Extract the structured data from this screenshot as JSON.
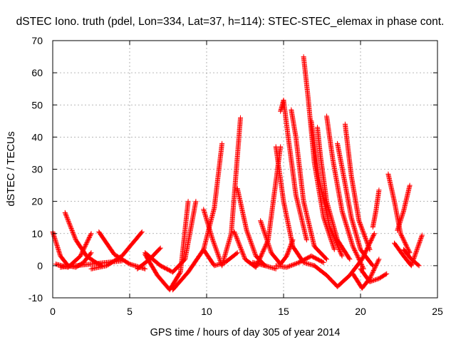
{
  "chart_data": {
    "type": "scatter",
    "title": "dSTEC Iono. truth (pdel, Lon=334, Lat=37, h=114): STEC-STEC_elemax in phase cont.",
    "xlabel": "GPS time / hours of day 305 of year 2014",
    "ylabel": "dSTEC  / TECUs",
    "xlim": [
      0,
      25
    ],
    "ylim": [
      -10,
      70
    ],
    "xticks": [
      "0",
      "5",
      "10",
      "15",
      "20",
      "25"
    ],
    "yticks": [
      "-10",
      "0",
      "10",
      "20",
      "30",
      "40",
      "50",
      "60",
      "70"
    ],
    "grid": true,
    "marker": "+",
    "color": "#ff0000",
    "series": [
      {
        "x": [
          0.0,
          0.5,
          1.0,
          1.5,
          2.0,
          2.5
        ],
        "y": [
          10.5,
          3,
          0,
          -0.5,
          1,
          4
        ]
      },
      {
        "x": [
          0.8,
          1.5,
          2.2,
          2.8,
          3.2
        ],
        "y": [
          16.5,
          8,
          3,
          1,
          0
        ]
      },
      {
        "x": [
          0.2,
          1.0,
          1.8,
          2.5
        ],
        "y": [
          0.5,
          -0.5,
          3,
          10
        ]
      },
      {
        "x": [
          0.5,
          1.5,
          2.5,
          3.5,
          4.5
        ],
        "y": [
          -0.5,
          0,
          0.5,
          1,
          1.5
        ]
      },
      {
        "x": [
          3.0,
          4.0,
          5.0,
          6.0
        ],
        "y": [
          10.5,
          3.5,
          0.5,
          -1
        ]
      },
      {
        "x": [
          2.5,
          3.5,
          4.5,
          5.8
        ],
        "y": [
          -1,
          0,
          3,
          10.5
        ]
      },
      {
        "x": [
          5.5,
          6.3,
          7.0
        ],
        "y": [
          -1,
          2,
          5.5
        ]
      },
      {
        "x": [
          6.0,
          7.0,
          7.8,
          8.6,
          9.3
        ],
        "y": [
          4,
          0,
          -2,
          2,
          20
        ]
      },
      {
        "x": [
          6.0,
          6.8,
          7.6,
          8.3,
          8.8
        ],
        "y": [
          3.5,
          -3,
          -7.5,
          -2,
          20
        ]
      },
      {
        "x": [
          7.8,
          8.8,
          9.8,
          10.5,
          11.0
        ],
        "y": [
          -7.5,
          -2,
          5,
          18,
          38
        ]
      },
      {
        "x": [
          9.8,
          10.4,
          11.0,
          11.6,
          12.2
        ],
        "y": [
          17.5,
          8,
          0,
          10,
          46
        ]
      },
      {
        "x": [
          9.8,
          10.5,
          11.2,
          12.0
        ],
        "y": [
          5,
          0,
          1,
          4
        ]
      },
      {
        "x": [
          12.0,
          12.6,
          13.2,
          13.8
        ],
        "y": [
          24,
          11,
          3,
          0
        ]
      },
      {
        "x": [
          11.8,
          12.5,
          13.2,
          14.0,
          14.8
        ],
        "y": [
          10.5,
          2,
          -0.5,
          8,
          37
        ]
      },
      {
        "x": [
          13.5,
          14.2,
          14.8,
          15.2,
          15.6
        ],
        "y": [
          14,
          4,
          0.5,
          3,
          8
        ]
      },
      {
        "x": [
          14.5,
          15.0,
          15.6,
          16.3,
          17.0
        ],
        "y": [
          37,
          20,
          6,
          1,
          0
        ]
      },
      {
        "x": [
          14.8,
          15.0,
          15.3,
          15.8,
          16.5
        ],
        "y": [
          48,
          51.5,
          40,
          22,
          8
        ]
      },
      {
        "x": [
          15.5,
          15.8,
          16.3,
          17.0,
          17.8
        ],
        "y": [
          48.5,
          40,
          20,
          6,
          2
        ]
      },
      {
        "x": [
          16.3,
          16.6,
          17.0,
          17.6,
          18.3
        ],
        "y": [
          65,
          52,
          32,
          15,
          5
        ]
      },
      {
        "x": [
          16.8,
          17.3,
          18.0,
          18.8
        ],
        "y": [
          45,
          27,
          12,
          3
        ]
      },
      {
        "x": [
          17.2,
          17.4,
          17.8,
          18.5,
          19.3
        ],
        "y": [
          43,
          34,
          20,
          8,
          2
        ]
      },
      {
        "x": [
          17.8,
          18.2,
          18.8,
          19.5,
          20.2
        ],
        "y": [
          46.5,
          33,
          17,
          6,
          -1
        ]
      },
      {
        "x": [
          18.5,
          18.9,
          19.4,
          20.0,
          20.8
        ],
        "y": [
          38,
          28,
          15,
          5,
          0
        ]
      },
      {
        "x": [
          19.0,
          19.4,
          19.9,
          20.6
        ],
        "y": [
          44,
          28,
          14,
          5
        ]
      },
      {
        "x": [
          17.0,
          17.8,
          18.5,
          19.3,
          20.1,
          20.9
        ],
        "y": [
          0,
          -3,
          -6.5,
          -3,
          2,
          10
        ]
      },
      {
        "x": [
          19.5,
          20.1,
          20.6,
          21.2
        ],
        "y": [
          -2.5,
          -7,
          -4,
          2
        ]
      },
      {
        "x": [
          20.0,
          20.6,
          21.2,
          21.7
        ],
        "y": [
          -1,
          -5,
          -4,
          -2.5
        ]
      },
      {
        "x": [
          20.8,
          21.0,
          21.2
        ],
        "y": [
          12,
          17,
          23.5
        ]
      },
      {
        "x": [
          21.8,
          22.2,
          22.6,
          23.2
        ],
        "y": [
          28.5,
          20,
          10,
          4
        ]
      },
      {
        "x": [
          22.2,
          22.8,
          23.3,
          24.0
        ],
        "y": [
          7,
          3,
          0,
          9.5
        ]
      },
      {
        "x": [
          22.4,
          22.8,
          23.2
        ],
        "y": [
          11,
          17,
          25
        ]
      },
      {
        "x": [
          22.8,
          23.3,
          23.8
        ],
        "y": [
          5,
          2,
          0
        ]
      },
      {
        "x": [
          14.5,
          15.2,
          16.0,
          16.8,
          17.6
        ],
        "y": [
          0,
          -0.5,
          1,
          3,
          1
        ]
      },
      {
        "x": [
          13.0,
          13.8,
          14.5
        ],
        "y": [
          1,
          0,
          -1
        ]
      }
    ]
  }
}
